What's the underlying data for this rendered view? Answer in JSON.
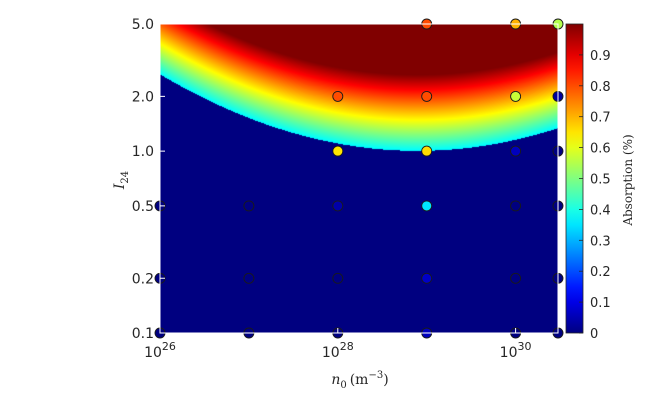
{
  "chart_data": {
    "type": "heatmap",
    "xlabel_sym": "n",
    "xlabel_sub": "0",
    "xlabel_unit": "(m",
    "xlabel_exp": "−3",
    "xlabel_close": ")",
    "ylabel_sym": "I",
    "ylabel_sub": "24",
    "x_log": true,
    "y_log": true,
    "xlim": [
      1e+26,
      3e+30
    ],
    "ylim": [
      0.1,
      5.0
    ],
    "x_ticks": [
      {
        "value": 1e+26,
        "base": "10",
        "exp": "26"
      },
      {
        "value": 1e+28,
        "base": "10",
        "exp": "28"
      },
      {
        "value": 1e+30,
        "base": "10",
        "exp": "30"
      }
    ],
    "y_ticks": [
      {
        "value": 0.1,
        "label": "0.1"
      },
      {
        "value": 0.2,
        "label": "0.2"
      },
      {
        "value": 0.5,
        "label": "0.5"
      },
      {
        "value": 1.0,
        "label": "1.0"
      },
      {
        "value": 2.0,
        "label": "2.0"
      },
      {
        "value": 5.0,
        "label": "5.0"
      }
    ],
    "colorbar": {
      "label": "Absorption (%)",
      "range": [
        0,
        1
      ],
      "colormap": "jet",
      "ticks": [
        "0",
        "0.1",
        "0.2",
        "0.3",
        "0.4",
        "0.5",
        "0.6",
        "0.7",
        "0.8",
        "0.9"
      ]
    },
    "background_color": "#00008f",
    "points": [
      {
        "x": 1e+26,
        "y": 0.1,
        "v": 0.0
      },
      {
        "x": 1e+26,
        "y": 0.2,
        "v": 0.0
      },
      {
        "x": 1e+26,
        "y": 0.5,
        "v": 0.0
      },
      {
        "x": 1e+27,
        "y": 0.1,
        "v": 0.0
      },
      {
        "x": 1e+27,
        "y": 0.2,
        "v": 0.0
      },
      {
        "x": 1e+27,
        "y": 0.5,
        "v": 0.0
      },
      {
        "x": 1e+28,
        "y": 0.1,
        "v": 0.0
      },
      {
        "x": 1e+28,
        "y": 0.2,
        "v": 0.0
      },
      {
        "x": 1e+28,
        "y": 0.5,
        "v": 0.04
      },
      {
        "x": 1e+28,
        "y": 1.0,
        "v": 0.65
      },
      {
        "x": 1e+28,
        "y": 2.0,
        "v": 0.8
      },
      {
        "x": 1e+29,
        "y": 0.1,
        "v": 0.06
      },
      {
        "x": 1e+29,
        "y": 0.2,
        "v": 0.07
      },
      {
        "x": 1e+29,
        "y": 0.5,
        "v": 0.35
      },
      {
        "x": 1e+29,
        "y": 1.0,
        "v": 0.66
      },
      {
        "x": 1e+29,
        "y": 2.0,
        "v": 0.8
      },
      {
        "x": 1e+29,
        "y": 5.0,
        "v": 0.8
      },
      {
        "x": 1e+30,
        "y": 0.1,
        "v": 0.0
      },
      {
        "x": 1e+30,
        "y": 0.2,
        "v": 0.0
      },
      {
        "x": 1e+30,
        "y": 0.5,
        "v": 0.0
      },
      {
        "x": 1e+30,
        "y": 1.0,
        "v": 0.06
      },
      {
        "x": 1e+30,
        "y": 2.0,
        "v": 0.57
      },
      {
        "x": 1e+30,
        "y": 5.0,
        "v": 0.7
      },
      {
        "x": 3e+30,
        "y": 0.1,
        "v": 0.0
      },
      {
        "x": 3e+30,
        "y": 0.2,
        "v": 0.0
      },
      {
        "x": 3e+30,
        "y": 0.5,
        "v": 0.0
      },
      {
        "x": 3e+30,
        "y": 1.0,
        "v": 0.0
      },
      {
        "x": 3e+30,
        "y": 2.0,
        "v": 0.03
      },
      {
        "x": 3e+30,
        "y": 5.0,
        "v": 0.55
      }
    ]
  }
}
